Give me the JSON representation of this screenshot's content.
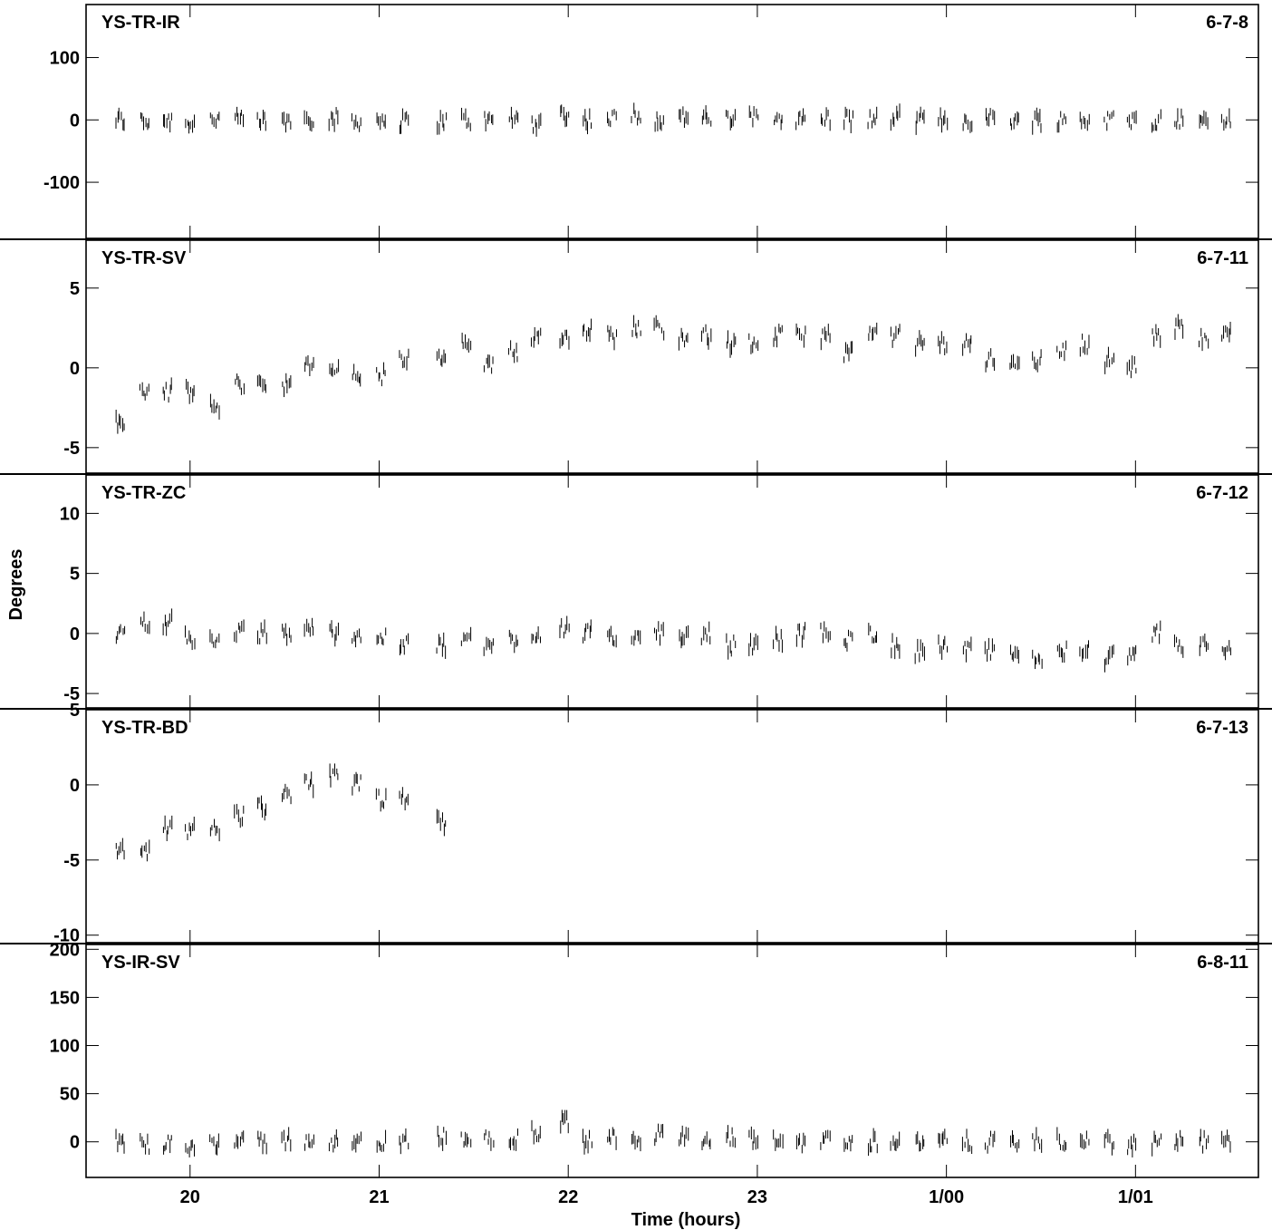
{
  "chart_data": {
    "type": "scatter",
    "ylabel": "Degrees",
    "xlabel": "Time (hours)",
    "x_ticks": [
      "20",
      "21",
      "22",
      "23",
      "1/00",
      "1/01"
    ],
    "xlim": [
      19.45,
      25.65
    ],
    "grid": false,
    "panels": [
      {
        "label": "YS-TR-IR",
        "tag": "6-7-8",
        "ylim": [
          -190,
          185
        ],
        "yticks": [
          -100,
          0,
          100
        ],
        "series": [
          {
            "x": [
              19.63,
              19.76,
              19.88,
              20.0,
              20.13,
              20.26,
              20.38,
              20.51,
              20.63,
              20.76,
              20.88,
              21.01,
              21.13,
              21.33,
              21.46,
              21.58,
              21.71,
              21.83,
              21.98,
              22.1,
              22.23,
              22.36,
              22.48,
              22.61,
              22.73,
              22.86,
              22.98,
              23.11,
              23.23,
              23.36,
              23.48,
              23.61,
              23.73,
              23.86,
              23.98,
              24.11,
              24.23,
              24.36,
              24.48,
              24.61,
              24.73,
              24.86,
              24.98,
              25.11,
              25.23,
              25.36,
              25.48
            ],
            "y": [
              0,
              -2,
              0,
              -3,
              2,
              0,
              -3,
              -2,
              3,
              2,
              -2,
              0,
              -3,
              -2,
              0,
              -2,
              3,
              -5,
              10,
              0,
              2,
              10,
              0,
              5,
              0,
              2,
              2,
              5,
              0,
              2,
              2,
              0,
              2,
              0,
              0,
              0,
              2,
              0,
              0,
              0,
              0,
              0,
              -2,
              0,
              0,
              0,
              0
            ]
          }
        ]
      },
      {
        "label": "YS-TR-SV",
        "tag": "6-7-11",
        "ylim": [
          -6.6,
          8.0
        ],
        "yticks": [
          -5,
          0,
          5
        ],
        "series": [
          {
            "x": [
              19.63,
              19.76,
              19.88,
              20.0,
              20.13,
              20.26,
              20.38,
              20.51,
              20.63,
              20.76,
              20.88,
              21.01,
              21.13,
              21.33,
              21.46,
              21.58,
              21.71,
              21.83,
              21.98,
              22.1,
              22.23,
              22.36,
              22.48,
              22.61,
              22.73,
              22.86,
              22.98,
              23.11,
              23.23,
              23.36,
              23.48,
              23.61,
              23.73,
              23.86,
              23.98,
              24.11,
              24.23,
              24.36,
              24.48,
              24.61,
              24.73,
              24.86,
              24.98,
              25.11,
              25.23,
              25.36,
              25.48
            ],
            "y": [
              -3.5,
              -1.5,
              -1.5,
              -1.5,
              -2.5,
              -1.0,
              -1.0,
              -1.0,
              0.0,
              0.0,
              -0.5,
              -0.5,
              0.5,
              0.5,
              1.5,
              0.0,
              1.0,
              2.0,
              2.0,
              2.5,
              2.0,
              2.5,
              2.5,
              2.0,
              2.0,
              1.5,
              1.5,
              2.0,
              2.0,
              2.0,
              1.0,
              2.0,
              2.0,
              1.5,
              1.5,
              1.5,
              0.5,
              0.5,
              0.5,
              1.0,
              1.5,
              0.5,
              0.0,
              2.0,
              2.5,
              2.0,
              2.0
            ]
          }
        ]
      },
      {
        "label": "YS-TR-ZC",
        "tag": "6-7-12",
        "ylim": [
          -6.2,
          13.2
        ],
        "yticks": [
          -5,
          0,
          5,
          10
        ],
        "series": [
          {
            "x": [
              19.63,
              19.76,
              19.88,
              20.0,
              20.13,
              20.26,
              20.38,
              20.51,
              20.63,
              20.76,
              20.88,
              21.01,
              21.13,
              21.33,
              21.46,
              21.58,
              21.71,
              21.83,
              21.98,
              22.1,
              22.23,
              22.36,
              22.48,
              22.61,
              22.73,
              22.86,
              22.98,
              23.11,
              23.23,
              23.36,
              23.48,
              23.61,
              23.73,
              23.86,
              23.98,
              24.11,
              24.23,
              24.36,
              24.48,
              24.61,
              24.73,
              24.86,
              24.98,
              25.11,
              25.23,
              25.36,
              25.48
            ],
            "y": [
              0.0,
              1.0,
              1.0,
              -0.5,
              -0.5,
              0.0,
              0.0,
              0.0,
              0.5,
              0.0,
              0.0,
              -0.5,
              -1.0,
              -1.0,
              -0.5,
              -1.0,
              -0.5,
              0.0,
              0.5,
              0.0,
              -0.5,
              0.0,
              0.0,
              -0.5,
              0.0,
              -1.0,
              -1.0,
              -0.5,
              0.0,
              0.0,
              -0.5,
              0.0,
              -1.0,
              -1.5,
              -1.0,
              -1.5,
              -1.5,
              -2.0,
              -2.0,
              -1.5,
              -1.5,
              -2.0,
              -2.0,
              0.0,
              -1.0,
              -1.0,
              -1.5
            ]
          }
        ]
      },
      {
        "label": "YS-TR-BD",
        "tag": "6-7-13",
        "ylim": [
          -10.5,
          5.0
        ],
        "yticks": [
          -10,
          -5,
          0,
          5
        ],
        "series": [
          {
            "x": [
              19.63,
              19.76,
              19.88,
              20.0,
              20.13,
              20.26,
              20.38,
              20.51,
              20.63,
              20.76,
              20.88,
              21.01,
              21.13,
              21.33
            ],
            "y": [
              -4.5,
              -4.5,
              -3.0,
              -3.0,
              -3.0,
              -2.0,
              -1.5,
              -0.5,
              0.0,
              0.5,
              0.0,
              -1.0,
              -1.0,
              -2.5
            ]
          }
        ]
      },
      {
        "label": "YS-IR-SV",
        "tag": "6-8-11",
        "ylim": [
          -37,
          205
        ],
        "yticks": [
          0,
          50,
          100,
          150,
          200
        ],
        "series": [
          {
            "x": [
              19.63,
              19.76,
              19.88,
              20.0,
              20.13,
              20.26,
              20.38,
              20.51,
              20.63,
              20.76,
              20.88,
              21.01,
              21.13,
              21.33,
              21.46,
              21.58,
              21.71,
              21.83,
              21.98,
              22.1,
              22.23,
              22.36,
              22.48,
              22.61,
              22.73,
              22.86,
              22.98,
              23.11,
              23.23,
              23.36,
              23.48,
              23.61,
              23.73,
              23.86,
              23.98,
              24.11,
              24.23,
              24.36,
              24.48,
              24.61,
              24.73,
              24.86,
              24.98,
              25.11,
              25.23,
              25.36,
              25.48
            ],
            "y": [
              0,
              -2,
              -3,
              -2,
              0,
              -2,
              0,
              2,
              2,
              0,
              -2,
              -2,
              0,
              5,
              5,
              3,
              2,
              10,
              20,
              0,
              5,
              5,
              8,
              3,
              0,
              3,
              3,
              0,
              0,
              2,
              0,
              0,
              2,
              0,
              0,
              0,
              0,
              0,
              0,
              0,
              0,
              0,
              -3,
              0,
              0,
              0,
              0
            ]
          }
        ]
      }
    ]
  }
}
